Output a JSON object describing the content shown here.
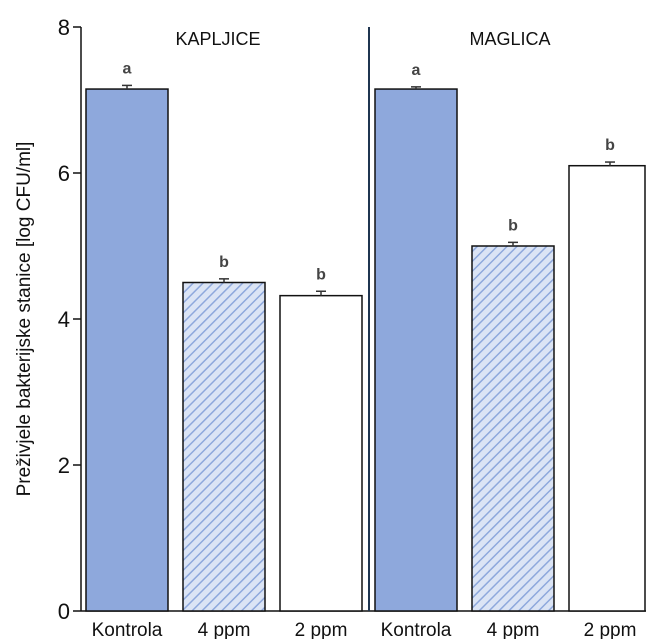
{
  "chart_data": {
    "type": "bar",
    "ylabel": "Preživjele bakterijske stanice [log CFU/ml]",
    "ylim": [
      0,
      8
    ],
    "yticks": [
      0,
      2,
      4,
      6,
      8
    ],
    "grid": false,
    "colors": {
      "control": "#8ea8dc",
      "hatch_bg": "#dbe4f5",
      "hatch_line": "#8ea8dc",
      "outline": "#111111",
      "white": "#ffffff"
    },
    "panels": [
      {
        "title": "KAPLJICE",
        "bars": [
          {
            "category": "Kontrola",
            "value": 7.15,
            "error": 0.05,
            "letter": "a",
            "fill": "solid"
          },
          {
            "category": "4 ppm",
            "value": 4.5,
            "error": 0.05,
            "letter": "b",
            "fill": "hatched"
          },
          {
            "category": "2 ppm",
            "value": 4.32,
            "error": 0.06,
            "letter": "b",
            "fill": "white"
          }
        ]
      },
      {
        "title": "MAGLICA",
        "bars": [
          {
            "category": "Kontrola",
            "value": 7.15,
            "error": 0.03,
            "letter": "a",
            "fill": "solid"
          },
          {
            "category": "4 ppm",
            "value": 5.0,
            "error": 0.05,
            "letter": "b",
            "fill": "hatched"
          },
          {
            "category": "2 ppm",
            "value": 6.1,
            "error": 0.05,
            "letter": "b",
            "fill": "white"
          }
        ]
      }
    ]
  }
}
